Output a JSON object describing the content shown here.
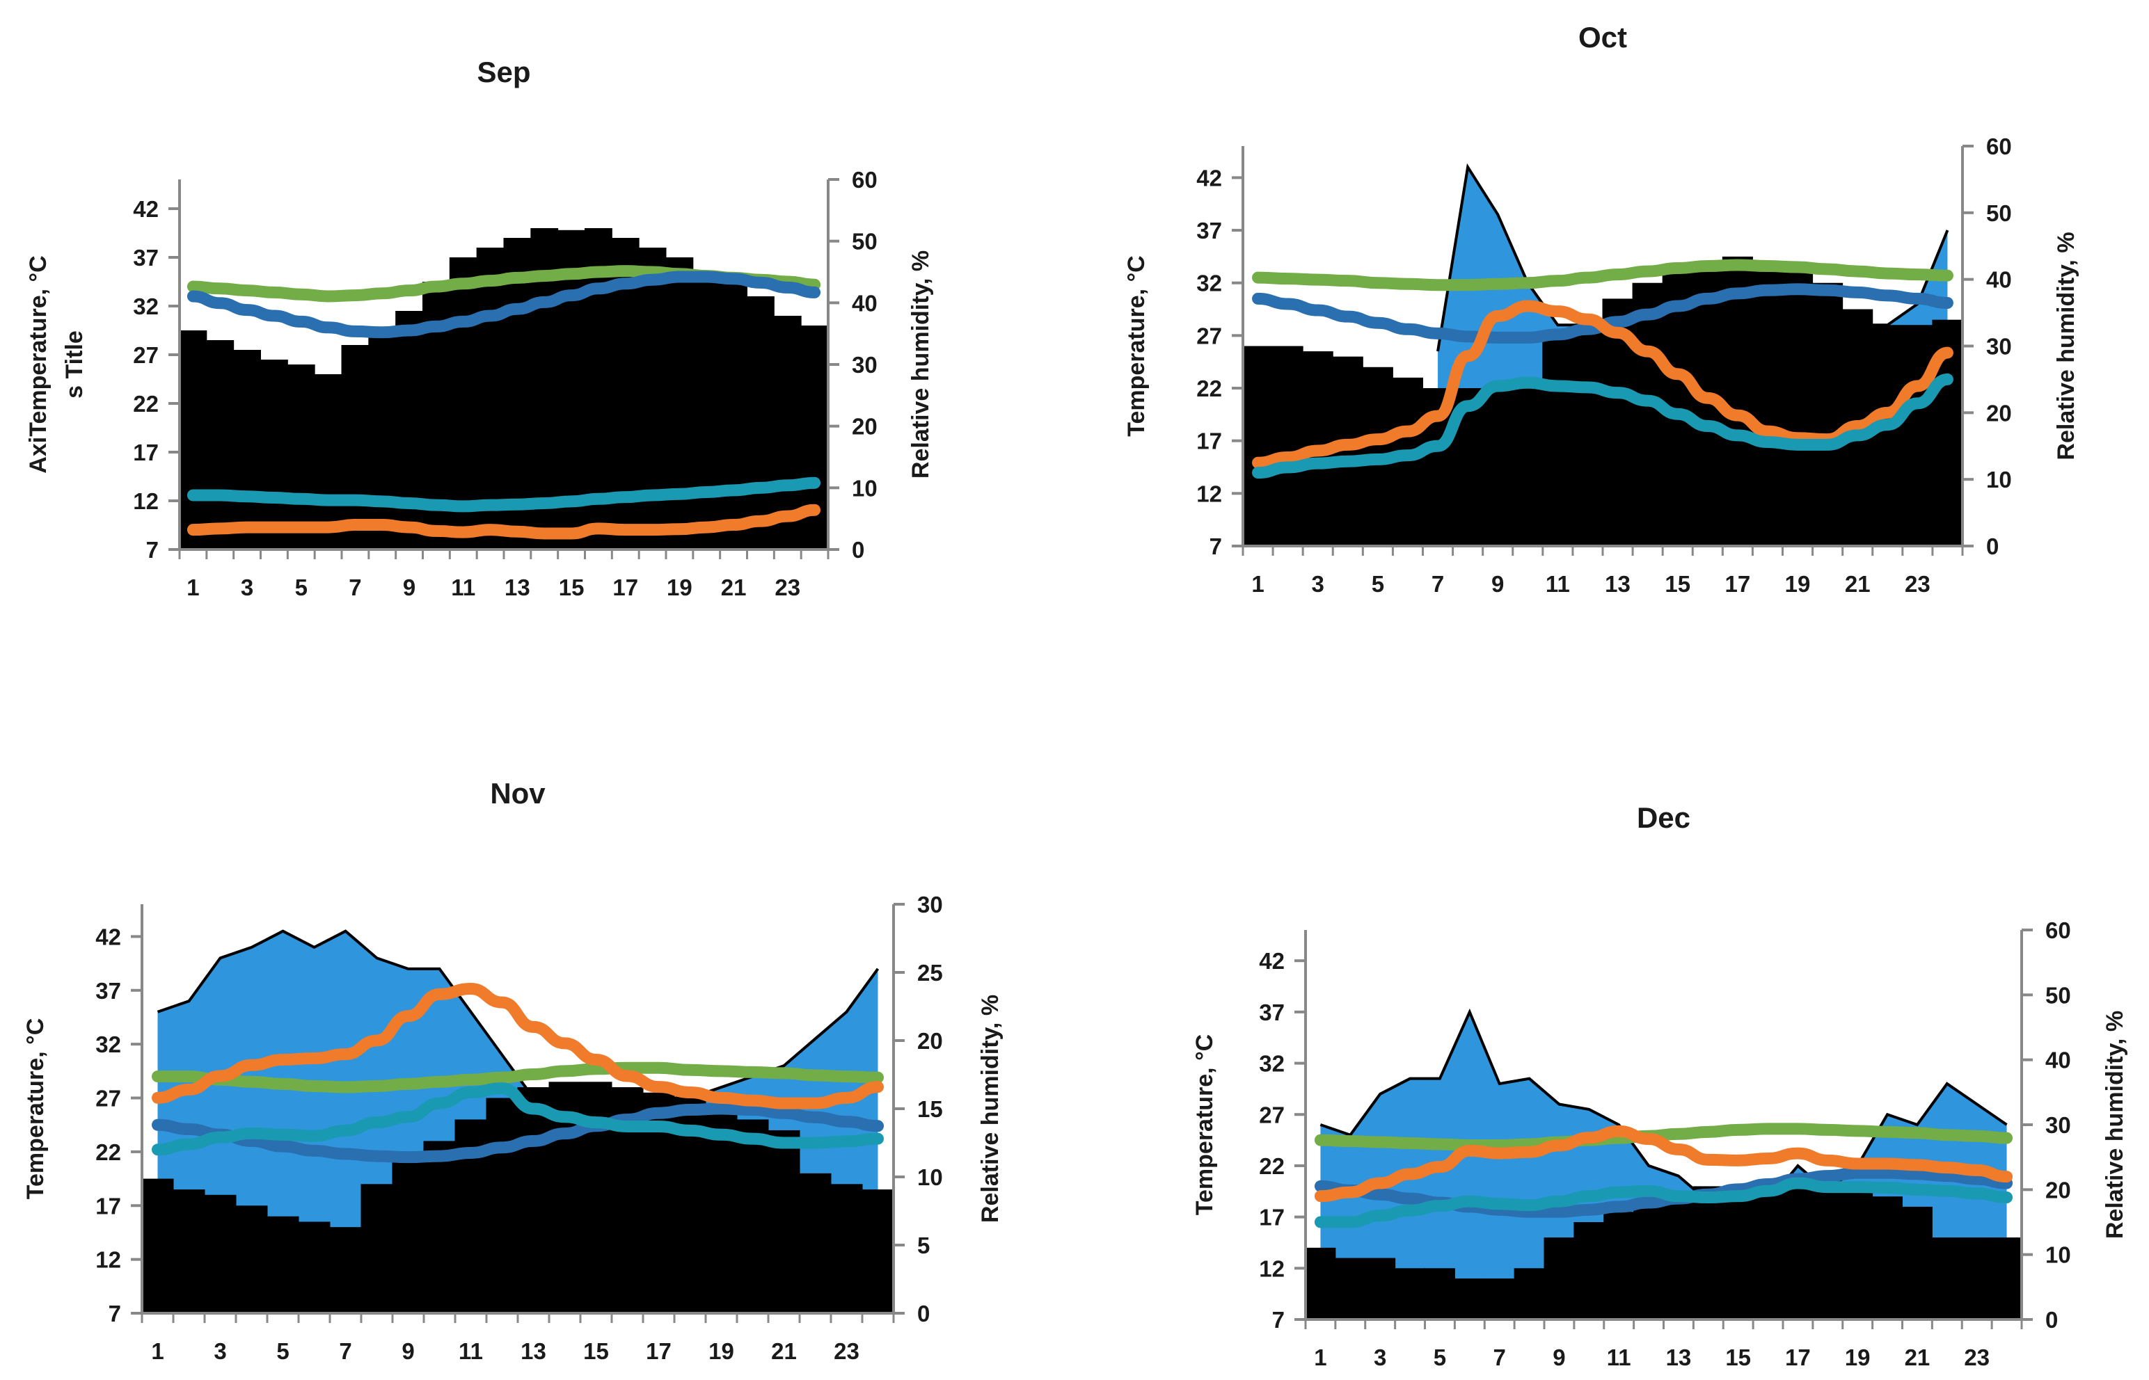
{
  "colors": {
    "background": "#ffffff",
    "black_area": "#000000",
    "blue_area": "#2f95dd",
    "series_green": "#72ad47",
    "series_blue": "#2a6fb0",
    "series_orange": "#f07b2a",
    "series_teal": "#1a9ab2",
    "axis": "#888888"
  },
  "chart_data": [
    {
      "type": "area+line",
      "id": "sep",
      "title": "Sep",
      "ylabel": "AxiTemperature, °C\ns Title",
      "ylabel_lines": [
        "AxiTemperature, °C",
        "s Title"
      ],
      "y2label": "Relative humidity, %",
      "ylim": [
        7,
        45
      ],
      "yticks": [
        7,
        12,
        17,
        22,
        27,
        32,
        37,
        42
      ],
      "y2lim": [
        0,
        60
      ],
      "y2ticks": [
        0,
        10,
        20,
        30,
        40,
        50,
        60
      ],
      "x": [
        1,
        2,
        3,
        4,
        5,
        6,
        7,
        8,
        9,
        10,
        11,
        12,
        13,
        14,
        15,
        16,
        17,
        18,
        19,
        20,
        21,
        22,
        23,
        24
      ],
      "xticks": [
        1,
        3,
        5,
        7,
        9,
        11,
        13,
        15,
        17,
        19,
        21,
        23
      ],
      "area_black": [
        29.5,
        28.5,
        27.5,
        26.5,
        26,
        25,
        28,
        29.5,
        31.5,
        34.5,
        37,
        38,
        39,
        40,
        39.8,
        40,
        39,
        38,
        37,
        35.5,
        34.5,
        33,
        31,
        30
      ],
      "area_blue": [
        0,
        0,
        0,
        0,
        0,
        0,
        0,
        0,
        0,
        0,
        0,
        0,
        0,
        0,
        0,
        0,
        0,
        0,
        0,
        0,
        0,
        0,
        0,
        0
      ],
      "series": [
        {
          "name": "green",
          "axis": "left",
          "values": [
            34,
            33.8,
            33.6,
            33.4,
            33.2,
            33,
            33.1,
            33.3,
            33.6,
            34,
            34.3,
            34.6,
            34.9,
            35.1,
            35.3,
            35.5,
            35.6,
            35.5,
            35.3,
            35.1,
            34.9,
            34.7,
            34.5,
            34.2
          ]
        },
        {
          "name": "blue",
          "axis": "left",
          "values": [
            33,
            32.3,
            31.6,
            31,
            30.4,
            29.8,
            29.4,
            29.3,
            29.5,
            29.9,
            30.4,
            31,
            31.7,
            32.4,
            33.1,
            33.8,
            34.3,
            34.7,
            35,
            35,
            34.8,
            34.4,
            33.9,
            33.4
          ]
        },
        {
          "name": "teal",
          "axis": "right",
          "values": [
            8.8,
            8.8,
            8.6,
            8.4,
            8.2,
            8,
            8,
            7.8,
            7.5,
            7.2,
            7,
            7.2,
            7.3,
            7.5,
            7.8,
            8.2,
            8.5,
            8.8,
            9,
            9.3,
            9.6,
            10,
            10.4,
            10.8
          ]
        },
        {
          "name": "orange",
          "axis": "right",
          "values": [
            3.2,
            3.4,
            3.6,
            3.6,
            3.6,
            3.6,
            4,
            4,
            3.6,
            3,
            2.8,
            3.2,
            2.9,
            2.6,
            2.6,
            3.4,
            3.2,
            3.2,
            3.3,
            3.6,
            4,
            4.6,
            5.4,
            6.4
          ]
        }
      ]
    },
    {
      "type": "area+line",
      "id": "oct",
      "title": "Oct",
      "ylabel": "Temperature, °C",
      "y2label": "Relative humidity, %",
      "ylim": [
        7,
        45
      ],
      "yticks": [
        7,
        12,
        17,
        22,
        27,
        32,
        37,
        42
      ],
      "y2lim": [
        0,
        60
      ],
      "y2ticks": [
        0,
        10,
        20,
        30,
        40,
        50,
        60
      ],
      "x": [
        1,
        2,
        3,
        4,
        5,
        6,
        7,
        8,
        9,
        10,
        11,
        12,
        13,
        14,
        15,
        16,
        17,
        18,
        19,
        20,
        21,
        22,
        23,
        24
      ],
      "xticks": [
        1,
        3,
        5,
        7,
        9,
        11,
        13,
        15,
        17,
        19,
        21,
        23
      ],
      "area_black": [
        26,
        26,
        25.5,
        25,
        24,
        23,
        22,
        22,
        22,
        22,
        27,
        28,
        30.5,
        32,
        33,
        34,
        34.5,
        34,
        33.5,
        32,
        29.5,
        28,
        28,
        28.5
      ],
      "area_blue": [
        0,
        0,
        0,
        0,
        0,
        0,
        25.5,
        43,
        38.5,
        32,
        28,
        28,
        28,
        28,
        28,
        28,
        28,
        28,
        28,
        28,
        28,
        28,
        30,
        37
      ],
      "series": [
        {
          "name": "green",
          "axis": "left",
          "values": [
            32.5,
            32.4,
            32.3,
            32.2,
            32,
            31.9,
            31.8,
            31.8,
            31.9,
            32,
            32.2,
            32.5,
            32.8,
            33.1,
            33.4,
            33.6,
            33.7,
            33.6,
            33.5,
            33.3,
            33.1,
            32.9,
            32.8,
            32.7
          ]
        },
        {
          "name": "blue",
          "axis": "left",
          "values": [
            30.5,
            30,
            29.4,
            28.8,
            28.2,
            27.6,
            27.2,
            26.9,
            26.8,
            26.8,
            27.1,
            27.6,
            28.3,
            29,
            29.8,
            30.5,
            31,
            31.3,
            31.4,
            31.3,
            31.1,
            30.8,
            30.5,
            30.1
          ]
        },
        {
          "name": "orange",
          "axis": "right",
          "values": [
            12.5,
            13.3,
            14.3,
            15.2,
            16,
            17.2,
            19.5,
            28.5,
            34.5,
            36,
            35.2,
            34,
            32,
            29.2,
            25.8,
            22.2,
            19.6,
            17.2,
            16.2,
            16,
            18,
            20,
            24,
            29
          ]
        },
        {
          "name": "teal",
          "axis": "right",
          "values": [
            11,
            11.8,
            12.4,
            12.7,
            13,
            13.6,
            15,
            21,
            24,
            24.5,
            24,
            23.8,
            23,
            21.8,
            19.8,
            18,
            16.6,
            15.6,
            15.2,
            15.2,
            16.6,
            18.2,
            21.4,
            25
          ]
        }
      ]
    },
    {
      "type": "area+line",
      "id": "nov",
      "title": "Nov",
      "ylabel": "Temperature, °C",
      "y2label": "Relative humidity, %",
      "ylim": [
        7,
        45
      ],
      "yticks": [
        7,
        12,
        17,
        22,
        27,
        32,
        37,
        42
      ],
      "y2lim": [
        0,
        30
      ],
      "y2ticks": [
        0,
        5,
        10,
        15,
        20,
        25,
        30
      ],
      "x": [
        1,
        2,
        3,
        4,
        5,
        6,
        7,
        8,
        9,
        10,
        11,
        12,
        13,
        14,
        15,
        16,
        17,
        18,
        19,
        20,
        21,
        22,
        23,
        24
      ],
      "xticks": [
        1,
        3,
        5,
        7,
        9,
        11,
        13,
        15,
        17,
        19,
        21,
        23
      ],
      "area_black": [
        19.5,
        18.5,
        18,
        17,
        16,
        15.5,
        15,
        19,
        21,
        23,
        25,
        27,
        28,
        28.5,
        28.5,
        28,
        27.5,
        27,
        26,
        25,
        24,
        20,
        19,
        18.5
      ],
      "area_blue": [
        35,
        36,
        40,
        41,
        42.5,
        41,
        42.5,
        40,
        39,
        39,
        35,
        31,
        27,
        27,
        27,
        27,
        27,
        27,
        28,
        29,
        30,
        32.5,
        35,
        39
      ],
      "series": [
        {
          "name": "green",
          "axis": "left",
          "values": [
            29,
            29,
            28.7,
            28.5,
            28.3,
            28.1,
            28,
            28.1,
            28.3,
            28.5,
            28.7,
            28.9,
            29.2,
            29.5,
            29.7,
            29.8,
            29.8,
            29.6,
            29.5,
            29.4,
            29.3,
            29.1,
            29,
            28.9
          ]
        },
        {
          "name": "blue",
          "axis": "left",
          "values": [
            24.5,
            24.1,
            23.6,
            23,
            22.5,
            22.1,
            21.8,
            21.6,
            21.5,
            21.6,
            21.9,
            22.4,
            23,
            23.7,
            24.4,
            25,
            25.6,
            25.9,
            26,
            25.9,
            25.6,
            25.2,
            24.8,
            24.4
          ]
        },
        {
          "name": "orange",
          "axis": "right",
          "values": [
            15.8,
            16.4,
            17.4,
            18.2,
            18.6,
            18.7,
            19,
            20,
            21.8,
            23.4,
            23.8,
            22.8,
            21,
            19.8,
            18.6,
            17.4,
            16.6,
            16.2,
            15.8,
            15.6,
            15.4,
            15.4,
            15.8,
            16.6
          ]
        },
        {
          "name": "teal",
          "axis": "right",
          "values": [
            12,
            12.4,
            12.9,
            13.2,
            13.1,
            13,
            13.4,
            14,
            14.4,
            15.4,
            16.2,
            16.5,
            15,
            14.4,
            14,
            13.7,
            13.7,
            13.4,
            13.1,
            12.8,
            12.5,
            12.5,
            12.6,
            12.8
          ]
        }
      ]
    },
    {
      "type": "area+line",
      "id": "dec",
      "title": "Dec",
      "ylabel": "Temperature, °C",
      "y2label": "Relative humidity, %",
      "ylim": [
        7,
        45
      ],
      "yticks": [
        7,
        12,
        17,
        22,
        27,
        32,
        37,
        42
      ],
      "y2lim": [
        0,
        60
      ],
      "y2ticks": [
        0,
        10,
        20,
        30,
        40,
        50,
        60
      ],
      "x": [
        1,
        2,
        3,
        4,
        5,
        6,
        7,
        8,
        9,
        10,
        11,
        12,
        13,
        14,
        15,
        16,
        17,
        18,
        19,
        20,
        21,
        22,
        23,
        24
      ],
      "xticks": [
        1,
        3,
        5,
        7,
        9,
        11,
        13,
        15,
        17,
        19,
        21,
        23
      ],
      "area_black": [
        14,
        13,
        13,
        12,
        12,
        11,
        11,
        12,
        15,
        16.5,
        17.5,
        18.5,
        19.5,
        20,
        20,
        20,
        21,
        20,
        20,
        19,
        18,
        15,
        15,
        15
      ],
      "area_blue": [
        26,
        25,
        29,
        30.5,
        30.5,
        37,
        30,
        30.5,
        28,
        27.5,
        26,
        22,
        21,
        18.5,
        18.5,
        18.5,
        22,
        19.5,
        22,
        27,
        26,
        30,
        28,
        26
      ],
      "series": [
        {
          "name": "green",
          "axis": "left",
          "values": [
            24.5,
            24.4,
            24.3,
            24.2,
            24.1,
            24,
            24,
            24.1,
            24.3,
            24.5,
            24.7,
            24.9,
            25.1,
            25.3,
            25.5,
            25.6,
            25.6,
            25.5,
            25.4,
            25.3,
            25.2,
            25,
            24.9,
            24.7
          ]
        },
        {
          "name": "blue",
          "axis": "left",
          "values": [
            20,
            19.6,
            19.2,
            18.8,
            18.4,
            18,
            17.7,
            17.5,
            17.5,
            17.7,
            18,
            18.4,
            18.8,
            19.2,
            19.7,
            20.2,
            20.7,
            21,
            21.3,
            21.3,
            21.2,
            21,
            20.7,
            20.3
          ]
        },
        {
          "name": "orange",
          "axis": "right",
          "values": [
            19,
            19.6,
            21,
            22.4,
            23.5,
            26,
            25.6,
            25.8,
            26.8,
            28,
            29,
            27.8,
            26.2,
            24.6,
            24.5,
            24.8,
            25.6,
            24.5,
            24,
            24,
            23.8,
            23.4,
            23,
            22
          ]
        },
        {
          "name": "teal",
          "axis": "right",
          "values": [
            15,
            15,
            16,
            16.8,
            17.5,
            18.2,
            17.8,
            17.6,
            18.2,
            19,
            19.6,
            19.8,
            19,
            18.8,
            19,
            19.8,
            21,
            20.4,
            20.4,
            20.3,
            20,
            19.8,
            19.4,
            18.8
          ]
        }
      ]
    }
  ]
}
